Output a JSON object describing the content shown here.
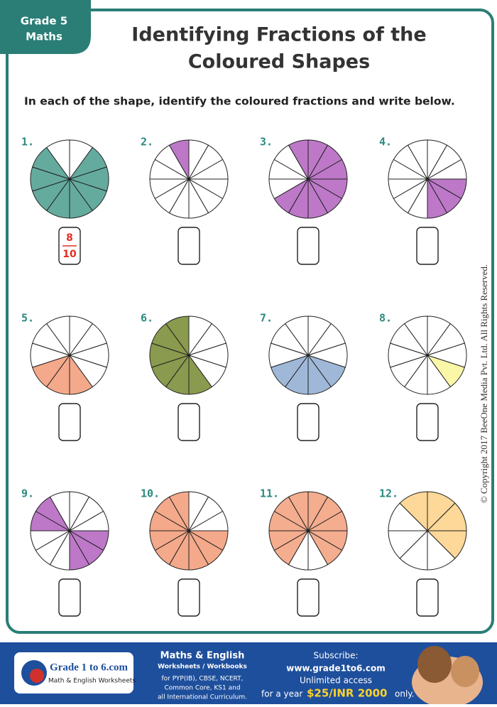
{
  "header": {
    "grade_tab": [
      "Grade 5",
      "Maths"
    ],
    "title": [
      "Identifying Fractions of the",
      "Coloured Shapes"
    ],
    "instruction": "In each of the shape, identify the coloured fractions and write below."
  },
  "problems": [
    {
      "label": "1.",
      "answer": {
        "numerator": "8",
        "denominator": "10"
      }
    },
    {
      "label": "2."
    },
    {
      "label": "3."
    },
    {
      "label": "4."
    },
    {
      "label": "5."
    },
    {
      "label": "6."
    },
    {
      "label": "7."
    },
    {
      "label": "8."
    },
    {
      "label": "9."
    },
    {
      "label": "10."
    },
    {
      "label": "11."
    },
    {
      "label": "12."
    }
  ],
  "copyright": "© Copyright 2017 BeeOne Media Pvt. Ltd. All Rights Reserved.",
  "footer": {
    "logo": {
      "name": "Grade 1 to 6.com",
      "tagline": "Math & English Worksheets"
    },
    "middle": {
      "heading": "Maths & English",
      "subheading": "Worksheets / Workbooks",
      "lines": [
        "for PYP(IB), CBSE, NCERT,",
        "Common Core, KS1 and",
        "all International Curriculum."
      ]
    },
    "subscribe": {
      "heading": "Subscribe:",
      "url": "www.grade1to6.com",
      "access": "Unlimited access",
      "price_prefix": "for a year",
      "price": "$25/INR 2000",
      "price_suffix": "only."
    }
  }
}
